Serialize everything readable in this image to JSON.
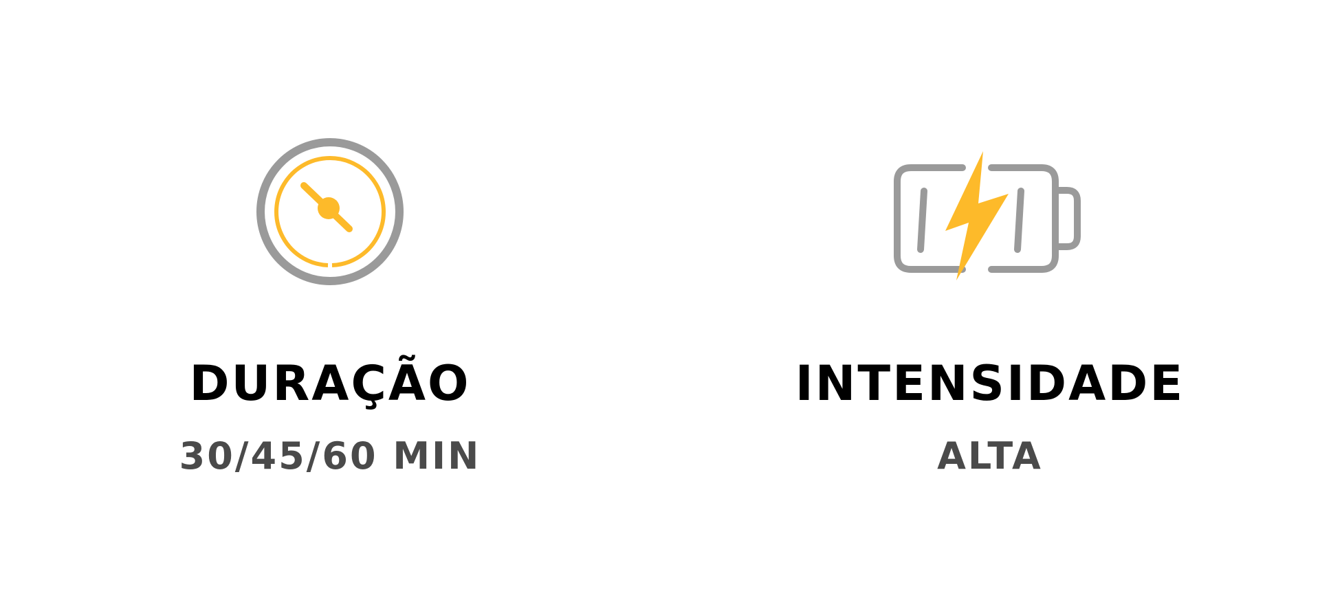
{
  "colors": {
    "accent": "#FDBA2A",
    "icon_gray": "#9A9A9A",
    "title": "#000000",
    "value": "#4A4A4A",
    "background": "#FFFFFF"
  },
  "features": [
    {
      "icon": "stopwatch-icon",
      "title": "DURAÇÃO",
      "value": "30/45/60 MIN"
    },
    {
      "icon": "battery-charging-icon",
      "title": "INTENSIDADE",
      "value": "ALTA"
    }
  ]
}
